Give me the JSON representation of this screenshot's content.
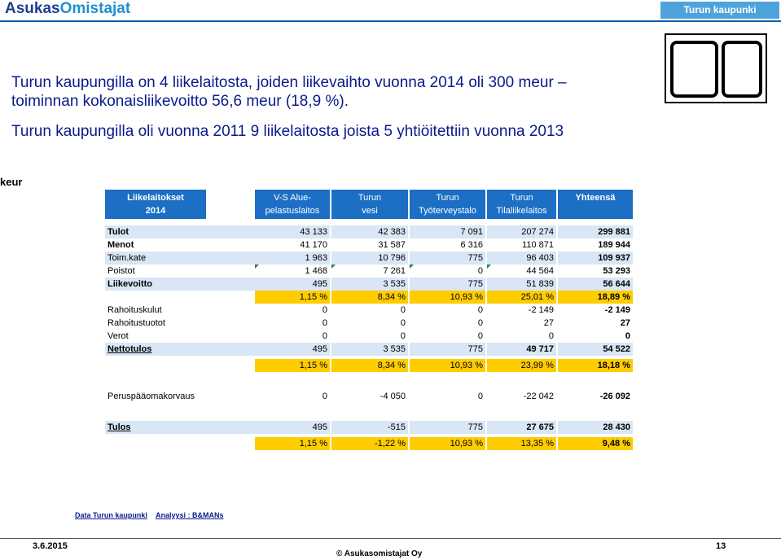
{
  "brand": {
    "part1": "Asukas",
    "part2": "Omistajat"
  },
  "city_label": "Turun kaupunki",
  "headings": {
    "line1": "Turun kaupungilla on 4 liikelaitosta, joiden liikevaihto vuonna 2014 oli 300  meur –",
    "line2": "toiminnan kokonaisliikevoitto 56,6  meur (18,9 %).",
    "line3": "Turun kaupungilla oli vuonna 2011  9 liikelaitosta joista 5 yhtiöitettiin vuonna 2013"
  },
  "unit": "keur",
  "table": {
    "header_label_1": "Liikelaitokset",
    "header_label_2": "2014",
    "columns": [
      {
        "l1": "V-S Alue-",
        "l2": "pelastuslaitos"
      },
      {
        "l1": "Turun",
        "l2": "vesi"
      },
      {
        "l1": "Turun",
        "l2": "Työterveystalo"
      },
      {
        "l1": "Turun",
        "l2": "Tilaliikelaitos"
      },
      {
        "l1": "Yhteensä",
        "l2": ""
      }
    ],
    "rows": {
      "tulot": {
        "label": "Tulot",
        "v": [
          "43 133",
          "42 383",
          "7 091",
          "207 274",
          "299 881"
        ]
      },
      "menot": {
        "label": "Menot",
        "v": [
          "41 170",
          "31 587",
          "6 316",
          "110 871",
          "189 944"
        ]
      },
      "toimkate": {
        "label": "Toim.kate",
        "v": [
          "1 963",
          "10 796",
          "775",
          "96 403",
          "109 937"
        ]
      },
      "poistot": {
        "label": "Poistot",
        "v": [
          "1 468",
          "7 261",
          "0",
          "44 564",
          "53 293"
        ]
      },
      "liikevoitto": {
        "label": "Liikevoitto",
        "v": [
          "495",
          "3 535",
          "775",
          "51 839",
          "56 644"
        ]
      },
      "liikevoitto_pct": {
        "v": [
          "1,15 %",
          "8,34 %",
          "10,93 %",
          "25,01 %",
          "18,89 %"
        ]
      },
      "rahoituskulut": {
        "label": "Rahoituskulut",
        "v": [
          "0",
          "0",
          "0",
          "-2 149",
          "-2 149"
        ]
      },
      "rahoitustuotot": {
        "label": "Rahoitustuotot",
        "v": [
          "0",
          "0",
          "0",
          "27",
          "27"
        ]
      },
      "verot": {
        "label": "Verot",
        "v": [
          "0",
          "0",
          "0",
          "0",
          "0"
        ]
      },
      "nettotulos": {
        "label": "Nettotulos",
        "v": [
          "495",
          "3 535",
          "775",
          "49 717",
          "54 522"
        ]
      },
      "nettotulos_pct": {
        "v": [
          "1,15 %",
          "8,34 %",
          "10,93 %",
          "23,99 %",
          "18,18 %"
        ]
      },
      "peruspaaoma": {
        "label": "Peruspääomakorvaus",
        "v": [
          "0",
          "-4 050",
          "0",
          "-22 042",
          "-26 092"
        ]
      },
      "tulos": {
        "label": "Tulos",
        "v": [
          "495",
          "-515",
          "775",
          "27 675",
          "28 430"
        ]
      },
      "tulos_pct": {
        "v": [
          "1,15 %",
          "-1,22 %",
          "10,93 %",
          "13,35 %",
          "9,48 %"
        ]
      }
    }
  },
  "credits": {
    "data": "Data Turun kaupunki",
    "analysis": "Analyysi : B&MANs"
  },
  "footer": {
    "date": "3.6.2015",
    "page": "13",
    "copyright": "© Asukasomistajat Oy"
  },
  "colors": {
    "header_blue": "#1c6fc4",
    "row_blue": "#d8e6f5",
    "highlight_yellow": "#ffcc00",
    "heading_navy": "#0a1a8c"
  }
}
